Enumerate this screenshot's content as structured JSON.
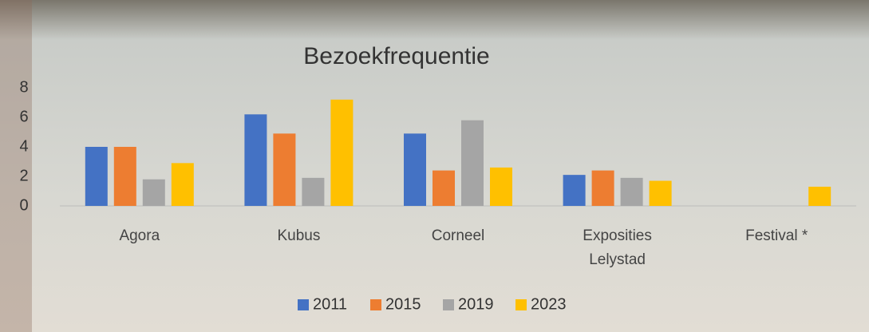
{
  "chart_data": {
    "type": "bar",
    "title": "Bezoekfrequentie",
    "categories": [
      "Agora",
      "Kubus",
      "Corneel",
      "Exposities Lelystad",
      "Festival *"
    ],
    "series": [
      {
        "name": "2011",
        "color": "#4472c4",
        "values": [
          4.0,
          6.2,
          4.9,
          2.1,
          null
        ]
      },
      {
        "name": "2015",
        "color": "#ed7d31",
        "values": [
          4.0,
          4.9,
          2.4,
          2.4,
          null
        ]
      },
      {
        "name": "2019",
        "color": "#a5a5a5",
        "values": [
          1.8,
          1.9,
          5.8,
          1.9,
          null
        ]
      },
      {
        "name": "2023",
        "color": "#ffc000",
        "values": [
          2.9,
          7.2,
          2.6,
          1.7,
          1.3
        ]
      }
    ],
    "ylim": [
      0,
      8
    ],
    "yticks": [
      0,
      2,
      4,
      6,
      8
    ],
    "legend": "bottom"
  }
}
